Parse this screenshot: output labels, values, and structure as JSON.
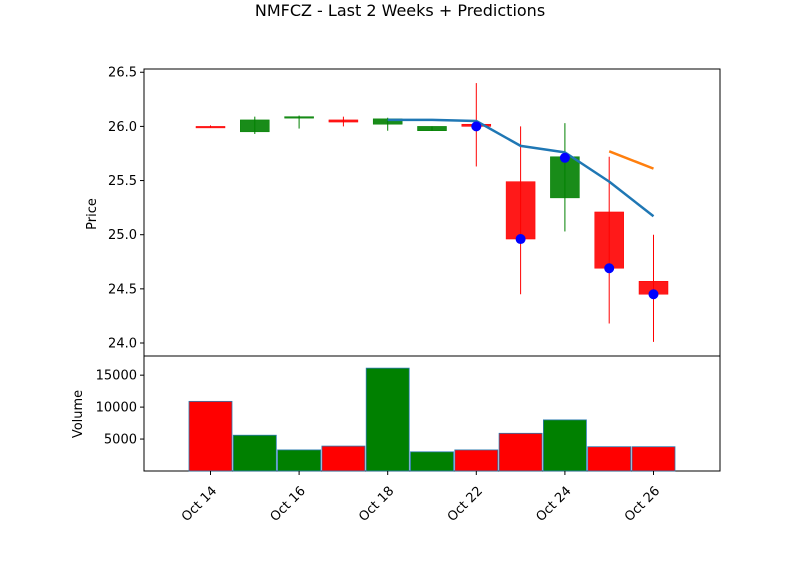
{
  "chart_data": {
    "type": "candlestick",
    "title": "NMFCZ - Last 2 Weeks + Predictions",
    "x_tick_labels": [
      "Oct 14",
      "Oct 16",
      "Oct 18",
      "Oct 22",
      "Oct 24",
      "Oct 26"
    ],
    "x_tick_index": [
      0,
      2,
      4,
      6,
      8,
      10
    ],
    "price_panel": {
      "ylabel": "Price",
      "ylim": [
        23.88,
        26.53
      ],
      "yticks": [
        "24.0",
        "24.5",
        "25.0",
        "25.5",
        "26.0",
        "26.5"
      ],
      "candles": [
        {
          "open": 26.0,
          "high": 26.01,
          "low": 25.99,
          "close": 26.0,
          "up": false
        },
        {
          "open": 25.95,
          "high": 26.09,
          "low": 25.93,
          "close": 26.06,
          "up": true
        },
        {
          "open": 26.08,
          "high": 26.1,
          "low": 25.98,
          "close": 26.09,
          "up": true
        },
        {
          "open": 26.06,
          "high": 26.09,
          "low": 26.0,
          "close": 26.04,
          "up": false
        },
        {
          "open": 26.02,
          "high": 26.08,
          "low": 25.96,
          "close": 26.07,
          "up": true
        },
        {
          "open": 25.96,
          "high": 26.0,
          "low": 25.96,
          "close": 26.0,
          "up": true
        },
        {
          "open": 26.02,
          "high": 26.4,
          "low": 25.63,
          "close": 26.0,
          "up": false
        },
        {
          "open": 25.49,
          "high": 26.0,
          "low": 24.45,
          "close": 24.96,
          "up": false
        },
        {
          "open": 25.34,
          "high": 26.03,
          "low": 25.03,
          "close": 25.72,
          "up": true
        },
        {
          "open": 25.21,
          "high": 25.72,
          "low": 24.18,
          "close": 24.69,
          "up": false
        },
        {
          "open": 24.57,
          "high": 25.0,
          "low": 24.01,
          "close": 24.45,
          "up": false
        }
      ],
      "moving_average": {
        "color": "#1f77b4",
        "points": [
          [
            4,
            26.06
          ],
          [
            5,
            26.06
          ],
          [
            6,
            26.05
          ],
          [
            7,
            25.82
          ],
          [
            8,
            25.76
          ],
          [
            9,
            25.49
          ],
          [
            10,
            25.17
          ]
        ]
      },
      "prediction_line": {
        "color": "#ff7f0e",
        "points": [
          [
            9,
            25.77
          ],
          [
            10,
            25.61
          ]
        ]
      },
      "markers": {
        "color": "#0000ff",
        "points": [
          [
            6,
            26.0
          ],
          [
            7,
            24.96
          ],
          [
            8,
            25.71
          ],
          [
            9,
            24.69
          ],
          [
            10,
            24.45
          ]
        ]
      }
    },
    "volume_panel": {
      "ylabel": "Volume",
      "ylim": [
        0,
        18000
      ],
      "yticks": [
        "5000",
        "10000",
        "15000"
      ],
      "ytick_values": [
        5000,
        10000,
        15000
      ],
      "values": [
        10900,
        5600,
        3300,
        3900,
        16100,
        3000,
        3300,
        5900,
        8000,
        3800,
        3800
      ],
      "up": [
        false,
        true,
        true,
        false,
        true,
        true,
        false,
        false,
        true,
        false,
        false
      ]
    },
    "colors": {
      "up": "#008000",
      "down": "#ff0000"
    }
  }
}
